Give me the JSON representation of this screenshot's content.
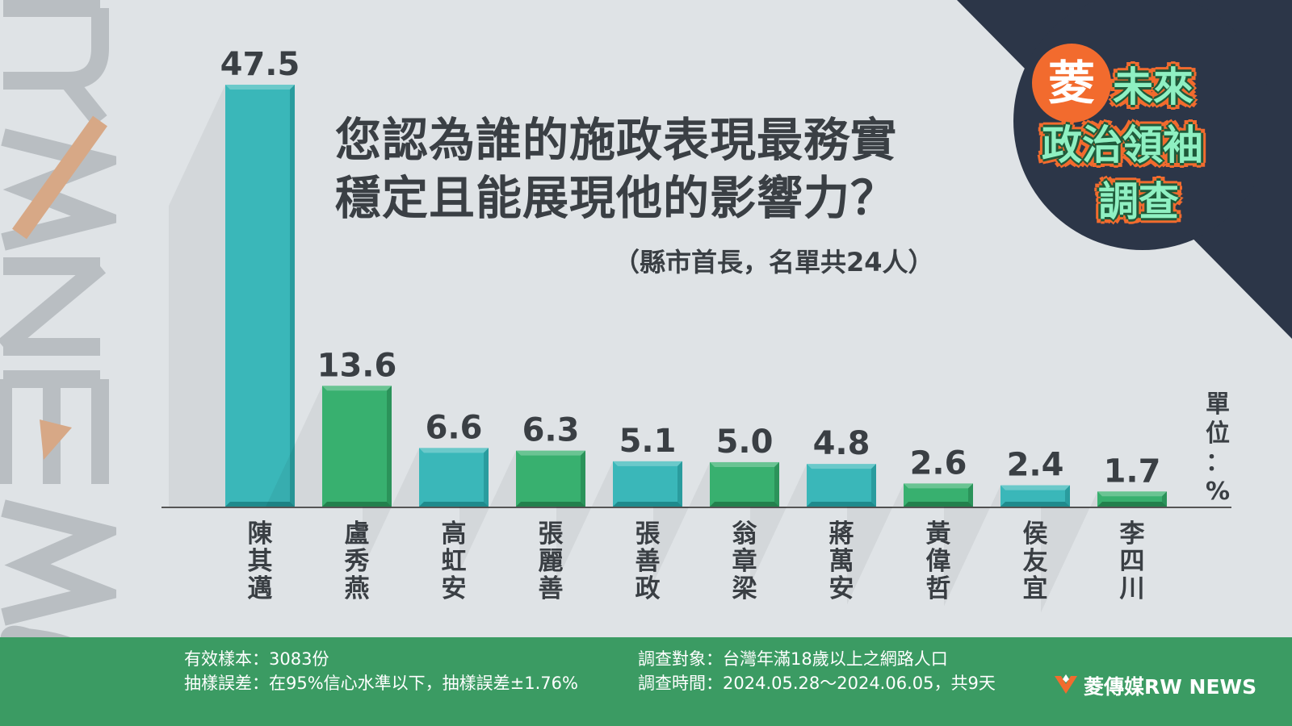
{
  "chart_data": {
    "type": "bar",
    "title_lines": [
      "您認為誰的施政表現最務實",
      "穩定且能展現他的影響力？"
    ],
    "subtitle": "（縣市首長，名單共24人）",
    "unit_chars": [
      "單",
      "位",
      "：",
      "%"
    ],
    "categories": [
      "陳其邁",
      "盧秀燕",
      "高虹安",
      "張麗善",
      "張善政",
      "翁章梁",
      "蔣萬安",
      "黃偉哲",
      "侯友宜",
      "李四川"
    ],
    "values": [
      47.5,
      13.6,
      6.6,
      6.3,
      5.1,
      5.0,
      4.8,
      2.6,
      2.4,
      1.7
    ],
    "value_labels": [
      "47.5",
      "13.6",
      "6.6",
      "6.3",
      "5.1",
      "5.0",
      "4.8",
      "2.6",
      "2.4",
      "1.7"
    ],
    "ylim": [
      0,
      47.5
    ],
    "grid": false,
    "colors": {
      "teal": "#3ab7b9",
      "green": "#38b06f",
      "teal_dark": "#1f8a8c",
      "green_dark": "#23804d",
      "axis": "#555555",
      "text": "#3a3f44"
    }
  },
  "badge": {
    "ling": "菱",
    "lines": [
      "未來",
      "政治領袖",
      "調查"
    ]
  },
  "footer": {
    "left": [
      "有效樣本：3083份",
      "抽樣誤差：在95%信心水準以下，抽樣誤差±1.76%"
    ],
    "right": [
      "調查對象：台灣年滿18歲以上之網路人口",
      "調查時間：2024.05.28～2024.06.05，共9天"
    ],
    "brand": "菱傳媒RW NEWS"
  },
  "watermark": "RW NEWS",
  "theme": {
    "background": "#dfe3e6",
    "corner": "#2c3648",
    "footer": "#3b9b63",
    "accent": "#f26b2e"
  }
}
